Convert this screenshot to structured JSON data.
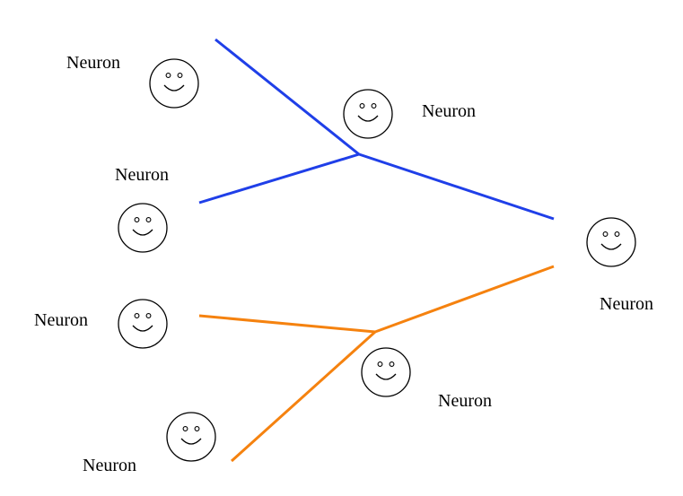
{
  "colors": {
    "blue": "#1f3fe8",
    "orange": "#f5820f"
  },
  "nodes": [
    {
      "id": "n1",
      "label": "Neuron",
      "icon": "smiley-face-icon"
    },
    {
      "id": "n2",
      "label": "Neuron",
      "icon": "smiley-face-icon"
    },
    {
      "id": "n3",
      "label": "Neuron",
      "icon": "smiley-face-icon"
    },
    {
      "id": "n4",
      "label": "Neuron",
      "icon": "smiley-face-icon"
    },
    {
      "id": "n5",
      "label": "Neuron",
      "icon": "smiley-face-icon"
    },
    {
      "id": "n6",
      "label": "Neuron",
      "icon": "smiley-face-icon"
    },
    {
      "id": "n7",
      "label": "Neuron",
      "icon": "smiley-face-icon"
    },
    {
      "id": "n8",
      "label": "Neuron",
      "icon": "smiley-face-icon"
    }
  ],
  "edges": [
    {
      "color": "blue"
    },
    {
      "color": "blue"
    },
    {
      "color": "blue"
    },
    {
      "color": "orange"
    },
    {
      "color": "orange"
    },
    {
      "color": "orange"
    }
  ]
}
